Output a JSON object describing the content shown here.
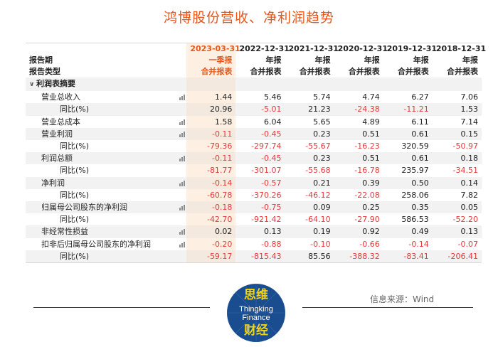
{
  "title": "鸿博股份营收、净利润趋势",
  "header": {
    "row1_label": "",
    "row2_label": "报告期",
    "row3_label": "报告类型",
    "periods": [
      {
        "date": "2023-03-31",
        "type": "一季报",
        "report": "合并报表"
      },
      {
        "date": "2022-12-31",
        "type": "年报",
        "report": "合并报表"
      },
      {
        "date": "2021-12-31",
        "type": "年报",
        "report": "合并报表"
      },
      {
        "date": "2020-12-31",
        "type": "年报",
        "report": "合并报表"
      },
      {
        "date": "2019-12-31",
        "type": "年报",
        "report": "合并报表"
      },
      {
        "date": "2018-12-31",
        "type": "年报",
        "report": "合并报表"
      }
    ]
  },
  "section": {
    "label": "利润表摘要"
  },
  "rows": [
    {
      "label": "营业总收入",
      "level": 1,
      "chart": true,
      "values": [
        "1.44",
        "5.46",
        "5.74",
        "4.74",
        "6.27",
        "7.06"
      ]
    },
    {
      "label": "同比(%)",
      "level": 2,
      "chart": false,
      "values": [
        "20.96",
        "-5.01",
        "21.23",
        "-24.38",
        "-11.21",
        "1.53"
      ]
    },
    {
      "label": "营业总成本",
      "level": 1,
      "chart": true,
      "values": [
        "1.58",
        "6.04",
        "5.65",
        "4.89",
        "6.11",
        "7.14"
      ]
    },
    {
      "label": "营业利润",
      "level": 1,
      "chart": true,
      "values": [
        "-0.11",
        "-0.45",
        "0.23",
        "0.51",
        "0.61",
        "0.15"
      ]
    },
    {
      "label": "同比(%)",
      "level": 2,
      "chart": false,
      "values": [
        "-79.36",
        "-297.74",
        "-55.67",
        "-16.23",
        "320.59",
        "-50.97"
      ]
    },
    {
      "label": "利润总额",
      "level": 1,
      "chart": true,
      "values": [
        "-0.11",
        "-0.45",
        "0.23",
        "0.51",
        "0.61",
        "0.18"
      ]
    },
    {
      "label": "同比(%)",
      "level": 2,
      "chart": false,
      "values": [
        "-81.77",
        "-301.07",
        "-55.68",
        "-16.78",
        "235.97",
        "-34.51"
      ]
    },
    {
      "label": "净利润",
      "level": 1,
      "chart": true,
      "values": [
        "-0.14",
        "-0.57",
        "0.21",
        "0.39",
        "0.50",
        "0.14"
      ]
    },
    {
      "label": "同比(%)",
      "level": 2,
      "chart": false,
      "values": [
        "-60.78",
        "-370.26",
        "-46.12",
        "-22.08",
        "258.06",
        "7.82"
      ]
    },
    {
      "label": "归属母公司股东的净利润",
      "level": 1,
      "chart": true,
      "values": [
        "-0.18",
        "-0.75",
        "0.09",
        "0.25",
        "0.35",
        "0.05"
      ]
    },
    {
      "label": "同比(%)",
      "level": 2,
      "chart": false,
      "values": [
        "-42.70",
        "-921.42",
        "-64.10",
        "-27.90",
        "586.53",
        "-52.20"
      ]
    },
    {
      "label": "非经常性损益",
      "level": 1,
      "chart": true,
      "values": [
        "0.02",
        "0.13",
        "0.19",
        "0.92",
        "0.49",
        "0.13"
      ]
    },
    {
      "label": "扣非后归属母公司股东的净利润",
      "level": 1,
      "chart": true,
      "values": [
        "-0.20",
        "-0.88",
        "-0.10",
        "-0.66",
        "-0.14",
        "-0.07"
      ]
    },
    {
      "label": "同比(%)",
      "level": 2,
      "chart": false,
      "values": [
        "-59.17",
        "-815.43",
        "85.56",
        "-388.32",
        "-83.41",
        "-206.41"
      ]
    }
  ],
  "source": "信息来源：Wind",
  "logo": {
    "line1": "思维",
    "line2": "Thingking",
    "line3": "Finance",
    "line4": "财经"
  },
  "colors": {
    "accent": "#e8561b",
    "negative": "#e4393c",
    "highlight": "#fdf0e2",
    "logo_blue": "#1a4d8f",
    "logo_yellow": "#f2d21b"
  }
}
